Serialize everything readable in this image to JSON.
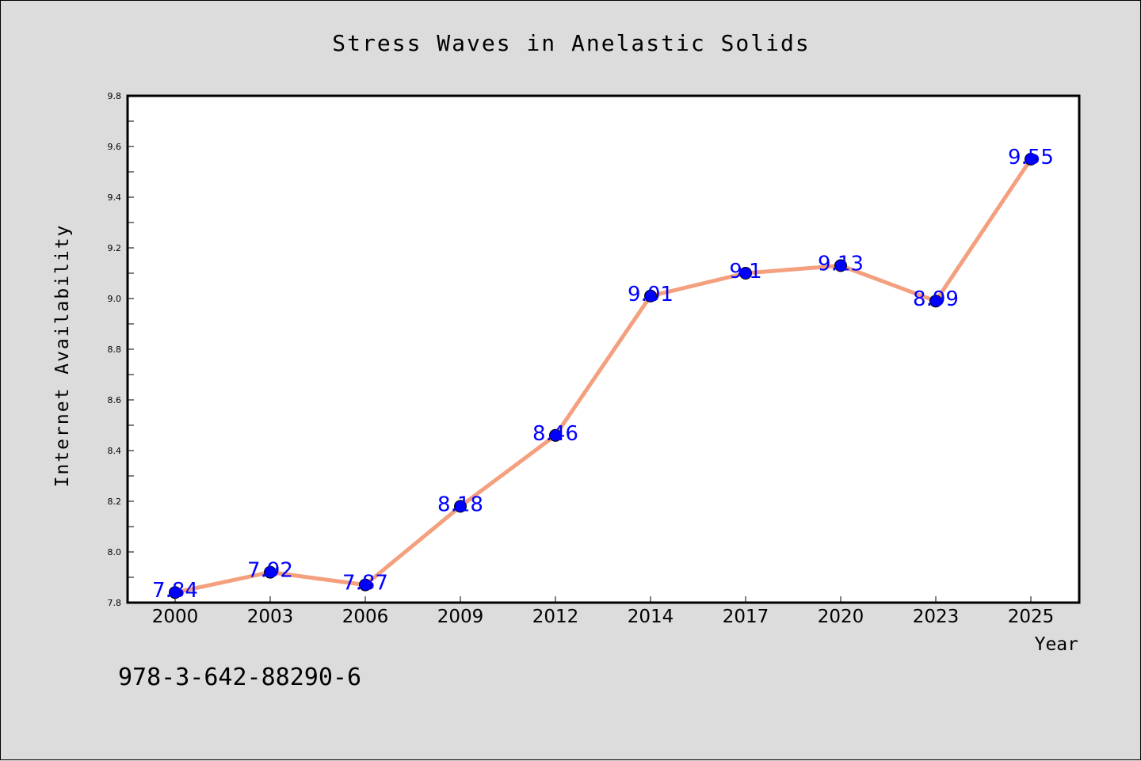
{
  "chart_data": {
    "type": "line",
    "title": "Stress Waves in Anelastic Solids",
    "xlabel": "Year",
    "ylabel": "Internet Availability",
    "categories": [
      "2000",
      "2003",
      "2006",
      "2009",
      "2012",
      "2014",
      "2017",
      "2020",
      "2023",
      "2025"
    ],
    "series": [
      {
        "values": [
          7.84,
          7.92,
          7.87,
          8.18,
          8.46,
          9.01,
          9.1,
          9.13,
          8.99,
          9.55
        ]
      }
    ],
    "data_labels": [
      "7.84",
      "7.92",
      "7.87",
      "8.18",
      "8.46",
      "9.01",
      "9.1",
      "9.13",
      "8.99",
      "9.55"
    ],
    "ylim": [
      7.8,
      9.8
    ],
    "yticks": [
      "7.8",
      "8.0",
      "8.2",
      "8.4",
      "8.6",
      "8.8",
      "9.0",
      "9.2",
      "9.4",
      "9.6",
      "9.8"
    ],
    "grid": false,
    "line_color": "#f4a07e",
    "marker_color": "#0000ff",
    "label_color": "#0000ff"
  },
  "footer": {
    "isbn": "978-3-642-88290-6"
  }
}
